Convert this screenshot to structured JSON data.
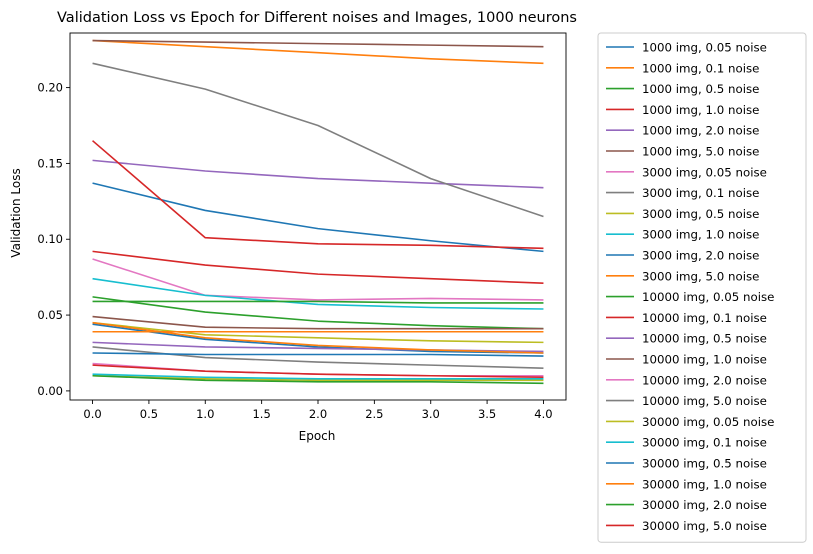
{
  "chart_data": {
    "type": "line",
    "title": "Validation Loss vs Epoch for Different noises and Images, 1000 neurons",
    "xlabel": "Epoch",
    "ylabel": "Validation Loss",
    "xlim": [
      -0.2,
      4.2
    ],
    "ylim": [
      -0.006,
      0.236
    ],
    "x": [
      0,
      1,
      2,
      3,
      4
    ],
    "xticks": [
      0.0,
      0.5,
      1.0,
      1.5,
      2.0,
      2.5,
      3.0,
      3.5,
      4.0
    ],
    "xtick_labels": [
      "0.0",
      "0.5",
      "1.0",
      "1.5",
      "2.0",
      "2.5",
      "3.0",
      "3.5",
      "4.0"
    ],
    "yticks": [
      0.0,
      0.05,
      0.1,
      0.15,
      0.2
    ],
    "ytick_labels": [
      "0.00",
      "0.05",
      "0.10",
      "0.15",
      "0.20"
    ],
    "grid": false,
    "legend_placement": "outside-right",
    "series": [
      {
        "name": "1000 img, 0.05 noise",
        "color": "#1f77b4",
        "values": [
          0.137,
          0.119,
          0.107,
          0.099,
          0.092
        ]
      },
      {
        "name": "1000 img, 0.1 noise",
        "color": "#ff7f0e",
        "values": [
          0.231,
          0.227,
          0.223,
          0.219,
          0.216
        ]
      },
      {
        "name": "1000 img, 0.5 noise",
        "color": "#2ca02c",
        "values": [
          0.062,
          0.052,
          0.046,
          0.043,
          0.041
        ]
      },
      {
        "name": "1000 img, 1.0 noise",
        "color": "#d62728",
        "values": [
          0.092,
          0.083,
          0.077,
          0.074,
          0.071
        ]
      },
      {
        "name": "1000 img, 2.0 noise",
        "color": "#9467bd",
        "values": [
          0.152,
          0.145,
          0.14,
          0.137,
          0.134
        ]
      },
      {
        "name": "1000 img, 5.0 noise",
        "color": "#8c564b",
        "values": [
          0.231,
          0.23,
          0.229,
          0.228,
          0.227
        ]
      },
      {
        "name": "3000 img, 0.05 noise",
        "color": "#e377c2",
        "values": [
          0.087,
          0.063,
          0.06,
          0.061,
          0.06
        ]
      },
      {
        "name": "3000 img, 0.1 noise",
        "color": "#7f7f7f",
        "values": [
          0.216,
          0.199,
          0.175,
          0.14,
          0.115
        ]
      },
      {
        "name": "3000 img, 0.5 noise",
        "color": "#bcbd22",
        "values": [
          0.045,
          0.037,
          0.035,
          0.033,
          0.032
        ]
      },
      {
        "name": "3000 img, 1.0 noise",
        "color": "#17becf",
        "values": [
          0.074,
          0.063,
          0.057,
          0.055,
          0.054
        ]
      },
      {
        "name": "3000 img, 2.0 noise",
        "color": "#1f77b4",
        "values": [
          0.044,
          0.034,
          0.029,
          0.026,
          0.025
        ]
      },
      {
        "name": "3000 img, 5.0 noise",
        "color": "#ff7f0e",
        "values": [
          0.039,
          0.039,
          0.039,
          0.039,
          0.039
        ]
      },
      {
        "name": "10000 img, 0.05 noise",
        "color": "#2ca02c",
        "values": [
          0.059,
          0.059,
          0.059,
          0.058,
          0.058
        ]
      },
      {
        "name": "10000 img, 0.1 noise",
        "color": "#d62728",
        "values": [
          0.165,
          0.101,
          0.097,
          0.096,
          0.094
        ]
      },
      {
        "name": "10000 img, 0.5 noise",
        "color": "#9467bd",
        "values": [
          0.032,
          0.029,
          0.028,
          0.027,
          0.026
        ]
      },
      {
        "name": "10000 img, 1.0 noise",
        "color": "#8c564b",
        "values": [
          0.049,
          0.042,
          0.041,
          0.041,
          0.041
        ]
      },
      {
        "name": "10000 img, 2.0 noise",
        "color": "#e377c2",
        "values": [
          0.018,
          0.013,
          0.011,
          0.01,
          0.01
        ]
      },
      {
        "name": "10000 img, 5.0 noise",
        "color": "#7f7f7f",
        "values": [
          0.029,
          0.022,
          0.019,
          0.017,
          0.015
        ]
      },
      {
        "name": "30000 img, 0.05 noise",
        "color": "#bcbd22",
        "values": [
          0.01,
          0.008,
          0.007,
          0.007,
          0.007
        ]
      },
      {
        "name": "30000 img, 0.1 noise",
        "color": "#17becf",
        "values": [
          0.011,
          0.009,
          0.008,
          0.008,
          0.008
        ]
      },
      {
        "name": "30000 img, 0.5 noise",
        "color": "#1f77b4",
        "values": [
          0.025,
          0.024,
          0.024,
          0.024,
          0.023
        ]
      },
      {
        "name": "30000 img, 1.0 noise",
        "color": "#ff7f0e",
        "values": [
          0.045,
          0.035,
          0.03,
          0.027,
          0.025
        ]
      },
      {
        "name": "30000 img, 2.0 noise",
        "color": "#2ca02c",
        "values": [
          0.01,
          0.007,
          0.006,
          0.006,
          0.005
        ]
      },
      {
        "name": "30000 img, 5.0 noise",
        "color": "#d62728",
        "values": [
          0.017,
          0.013,
          0.011,
          0.01,
          0.009
        ]
      }
    ]
  }
}
